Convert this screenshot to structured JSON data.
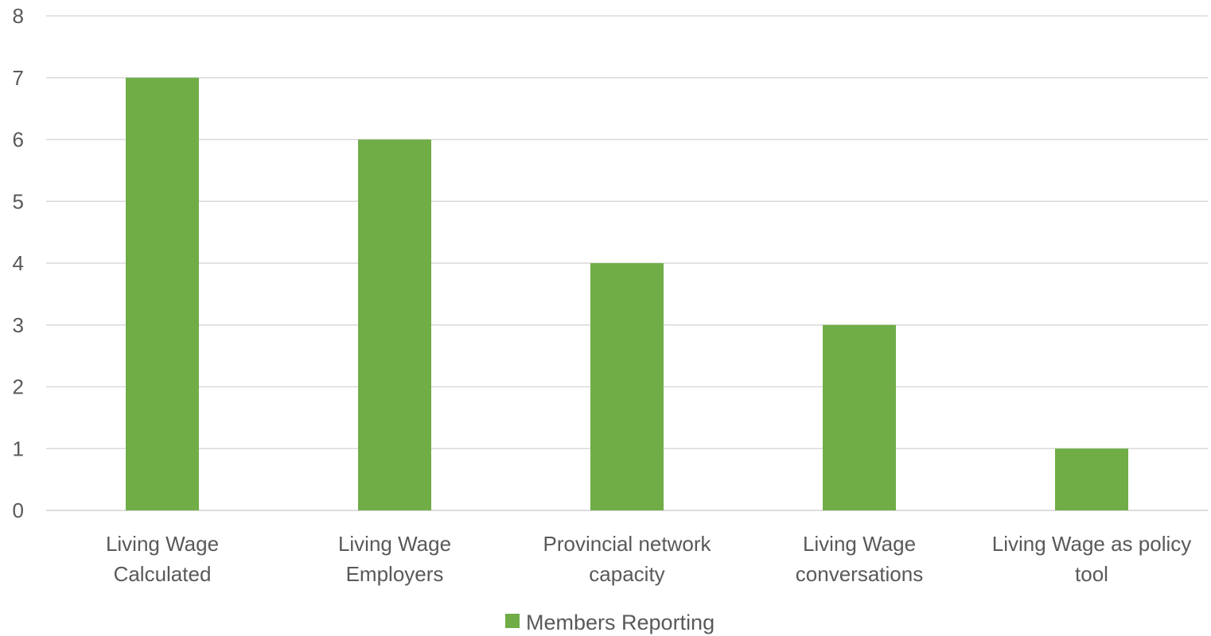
{
  "chart_data": {
    "type": "bar",
    "categories": [
      [
        "Living Wage",
        "Calculated"
      ],
      [
        "Living Wage",
        "Employers"
      ],
      [
        "Provincial network",
        "capacity"
      ],
      [
        "Living Wage",
        "conversations"
      ],
      [
        "Living Wage as policy",
        "tool"
      ]
    ],
    "series": [
      {
        "name": "Members Reporting",
        "values": [
          7,
          6,
          4,
          3,
          1
        ],
        "color": "#70ad47"
      }
    ],
    "ylim": [
      0,
      8
    ],
    "yticks": [
      0,
      1,
      2,
      3,
      4,
      5,
      6,
      7,
      8
    ],
    "grid": true,
    "legend": "bottom-center",
    "gridColor": "#d9d9d9",
    "textColor": "#595959"
  }
}
